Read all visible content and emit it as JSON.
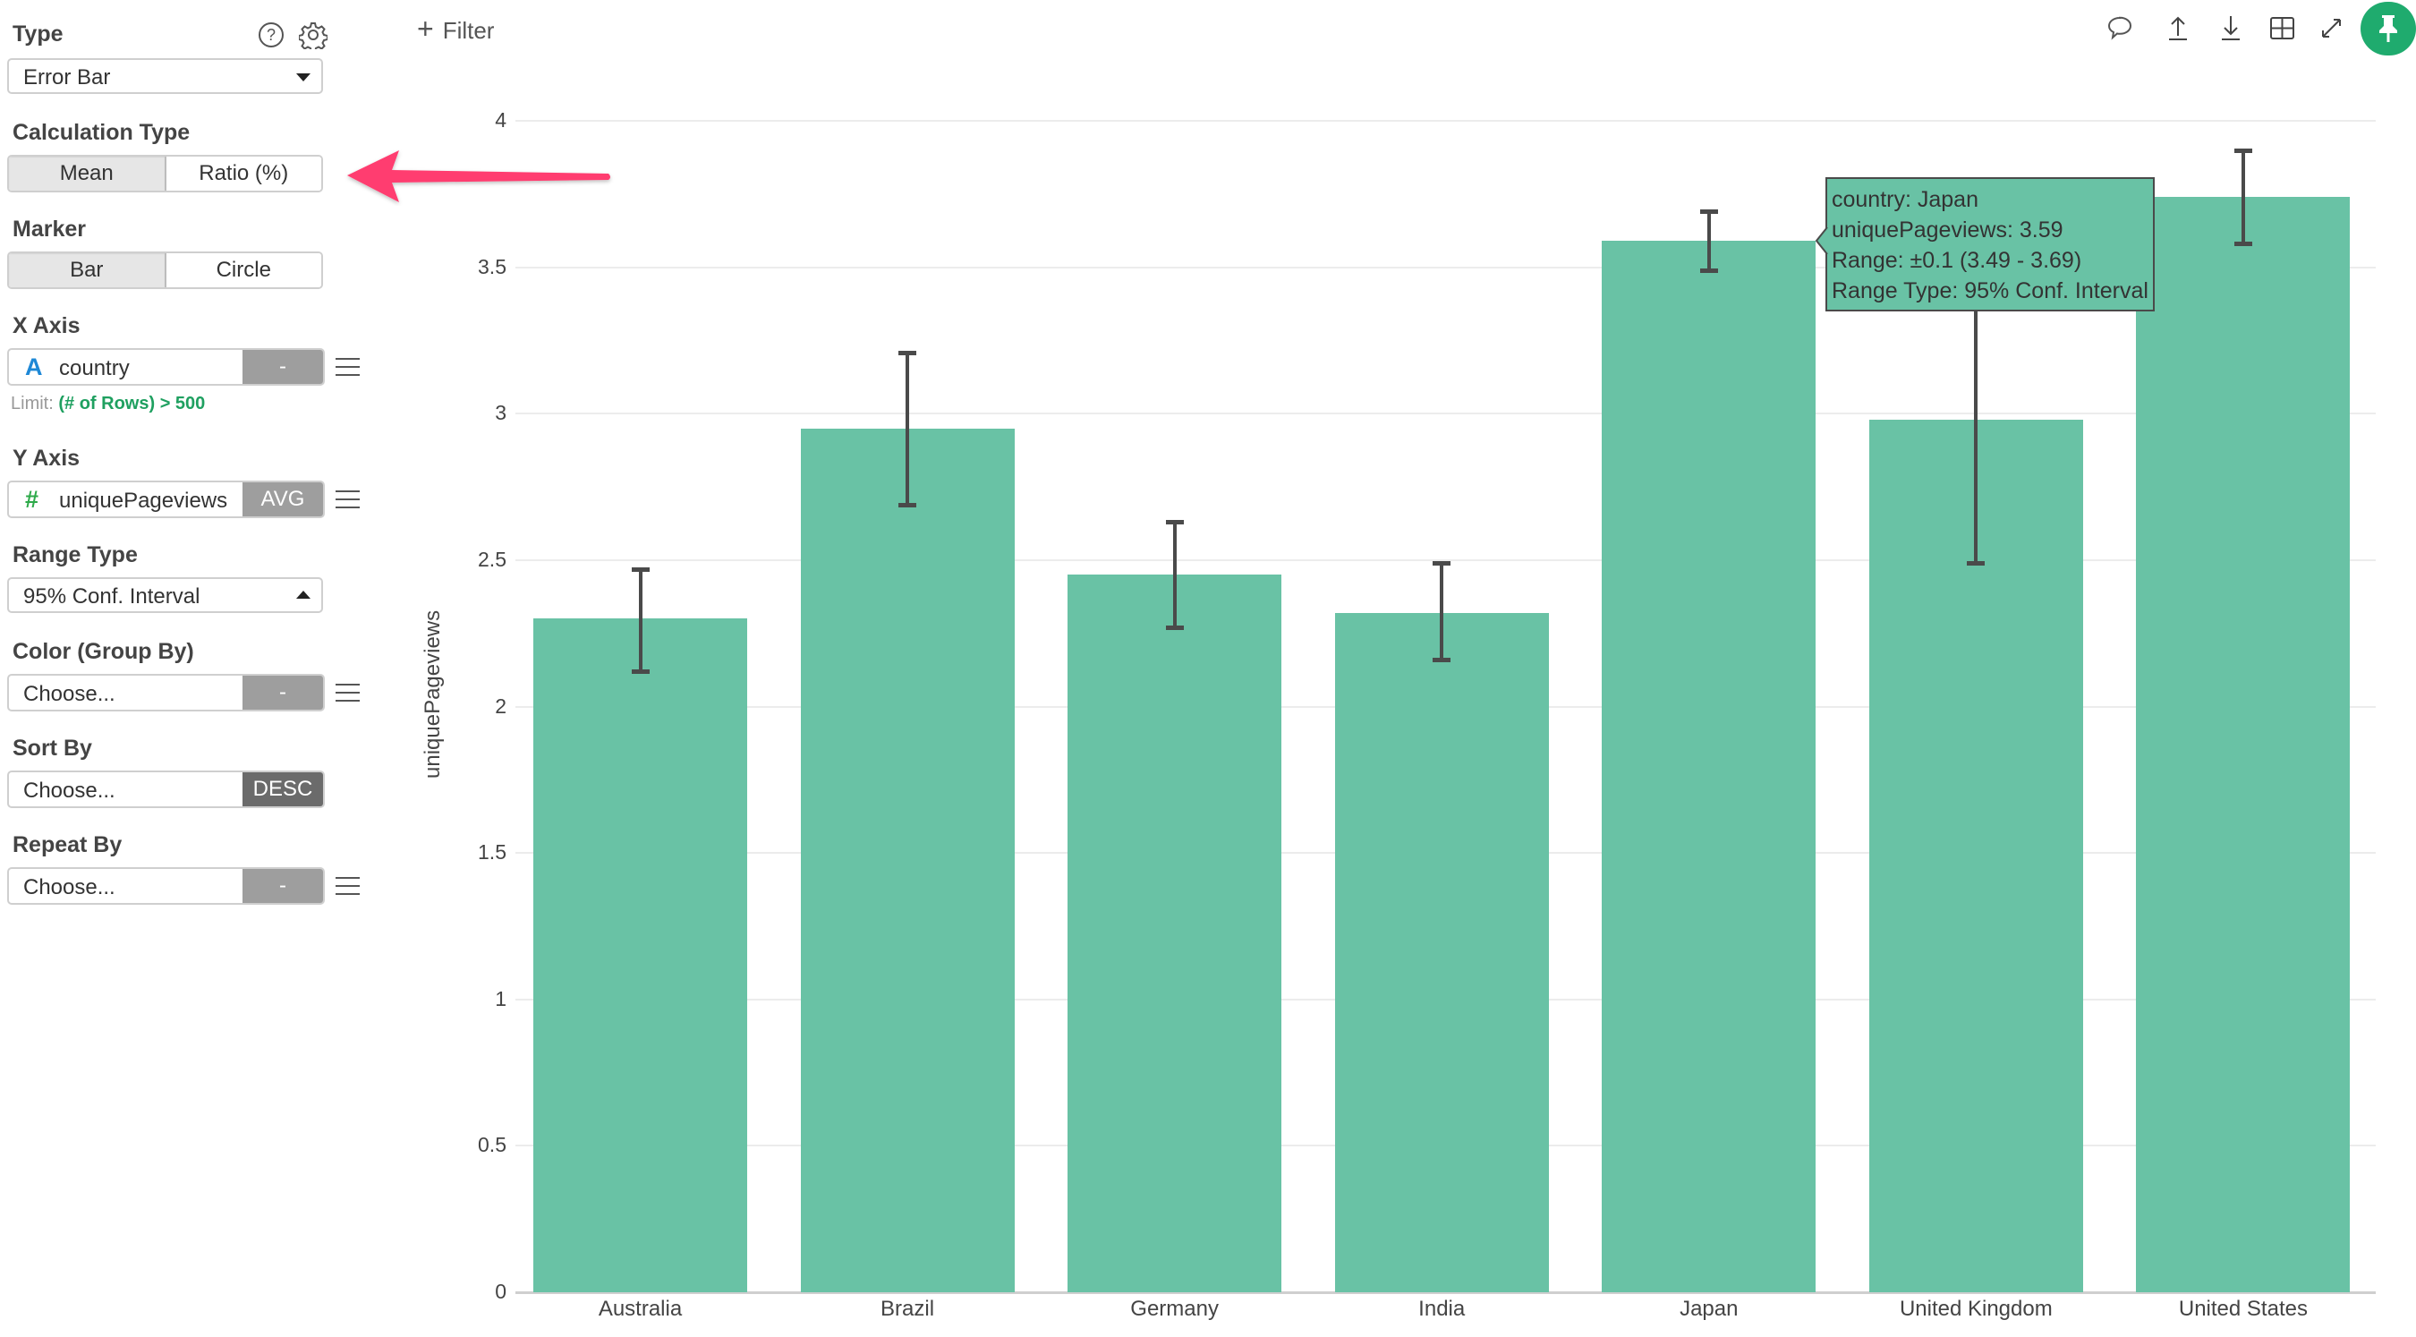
{
  "sidebar": {
    "type": {
      "label": "Type",
      "value": "Error Bar"
    },
    "help_icon": "question-circle-icon",
    "settings_icon": "gear-icon",
    "calculation_type": {
      "label": "Calculation Type",
      "options": [
        "Mean",
        "Ratio (%)"
      ],
      "selected": "Mean"
    },
    "marker": {
      "label": "Marker",
      "options": [
        "Bar",
        "Circle"
      ],
      "selected": "Bar"
    },
    "x_axis": {
      "label": "X Axis",
      "type_icon": "A",
      "field": "country",
      "aggregation": "-",
      "limit_prefix": "Limit:",
      "limit_value": "(# of Rows) > 500"
    },
    "y_axis": {
      "label": "Y Axis",
      "type_icon": "#",
      "field": "uniquePageviews",
      "aggregation": "AVG"
    },
    "range_type": {
      "label": "Range Type",
      "value": "95% Conf. Interval"
    },
    "color": {
      "label": "Color (Group By)",
      "placeholder": "Choose...",
      "button": "-"
    },
    "sort_by": {
      "label": "Sort By",
      "placeholder": "Choose...",
      "button": "DESC"
    },
    "repeat_by": {
      "label": "Repeat By",
      "placeholder": "Choose...",
      "button": "-"
    }
  },
  "toolbar": {
    "filter_label": "Filter",
    "filter_icon": "plus-icon",
    "icons": [
      "comment-icon",
      "upload-icon",
      "download-icon",
      "table-icon",
      "expand-icon",
      "pin-icon"
    ]
  },
  "colors": {
    "bar": "#69c2a5",
    "accent": "#1fab6e",
    "arrow": "#ff3d6f",
    "limit_text": "#1fa060",
    "x_type_icon": "#1e88d6",
    "y_type_icon": "#2eaa4a"
  },
  "tooltip": {
    "lines": [
      "country: Japan",
      "uniquePageviews: 3.59",
      "Range: ±0.1 (3.49 - 3.69)",
      "Range Type: 95% Conf. Interval"
    ]
  },
  "chart_data": {
    "type": "bar",
    "title": "",
    "xlabel": "",
    "ylabel": "uniquePageviews",
    "ylim": [
      0,
      4
    ],
    "yticks": [
      "0",
      "0.5",
      "1",
      "1.5",
      "2",
      "2.5",
      "3",
      "3.5",
      "4"
    ],
    "grid": true,
    "categories": [
      "Australia",
      "Brazil",
      "Germany",
      "India",
      "Japan",
      "United Kingdom",
      "United States"
    ],
    "values": [
      2.3,
      2.95,
      2.45,
      2.32,
      3.59,
      2.98,
      3.74
    ],
    "error_low": [
      2.12,
      2.69,
      2.27,
      2.16,
      3.49,
      2.49,
      3.58
    ],
    "error_high": [
      2.47,
      3.21,
      2.63,
      2.49,
      3.69,
      3.48,
      3.9
    ],
    "range_type": "95% Conf. Interval"
  }
}
